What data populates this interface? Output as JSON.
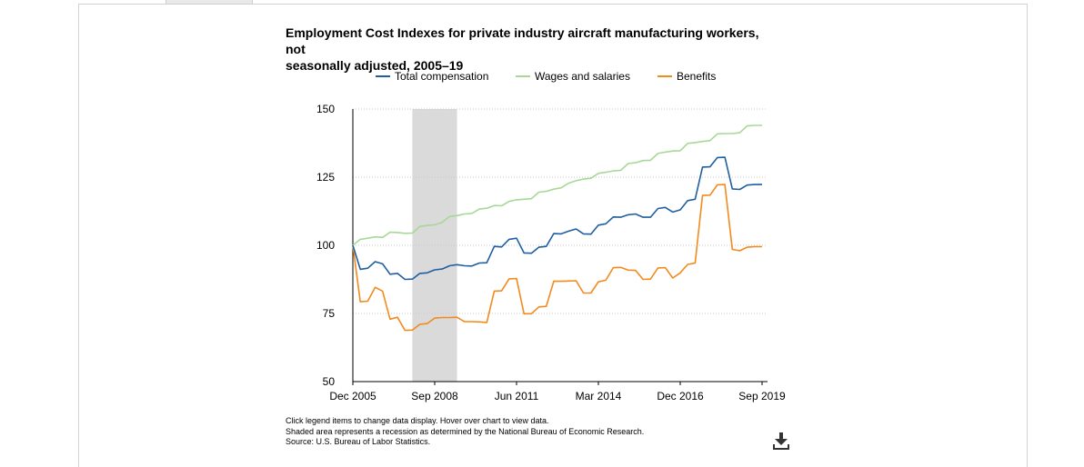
{
  "chart_data": {
    "type": "line",
    "title": "Employment Cost Indexes for private industry aircraft manufacturing workers, not\nseasonally adjusted, 2005–19",
    "xlabel": "",
    "ylabel": "",
    "ylim": [
      50,
      150
    ],
    "yticks": [
      50,
      75,
      100,
      125,
      150
    ],
    "xticks": [
      {
        "t": 0,
        "label": "Dec 2005"
      },
      {
        "t": 11,
        "label": "Sep 2008"
      },
      {
        "t": 22,
        "label": "Jun 2011"
      },
      {
        "t": 33,
        "label": "Mar 2014"
      },
      {
        "t": 44,
        "label": "Dec 2016"
      },
      {
        "t": 55,
        "label": "Sep 2019"
      }
    ],
    "x_unit": "quarters since Dec 2005",
    "recession": {
      "start": 8,
      "end": 14
    },
    "grid": "dotted horizontal",
    "legend_position": "top",
    "series": [
      {
        "name": "Total compensation",
        "color": "#1f5fa0",
        "values": [
          100,
          91.2,
          91.6,
          94,
          93.2,
          89.4,
          89.7,
          87.5,
          87.6,
          89.7,
          89.9,
          91,
          91.3,
          92.5,
          92.9,
          92.5,
          92.4,
          93.5,
          93.6,
          99.6,
          99.4,
          102.2,
          102.6,
          97.2,
          97.1,
          99.3,
          99.6,
          104.3,
          104.2,
          105.2,
          106,
          104.2,
          104.1,
          107.4,
          107.9,
          110.4,
          110.3,
          111.2,
          111.5,
          110.3,
          110.3,
          113.5,
          113.9,
          112.2,
          113,
          116.4,
          116.9,
          128.7,
          128.8,
          132.2,
          132.3,
          120.7,
          120.5,
          122.1,
          122.3,
          122.3
        ]
      },
      {
        "name": "Wages and salaries",
        "color": "#a8d896",
        "values": [
          100,
          102.2,
          102.6,
          103.1,
          102.9,
          104.8,
          104.7,
          104.4,
          104.5,
          106.9,
          107.3,
          107.5,
          108.4,
          110.6,
          110.9,
          111.5,
          111.7,
          113.3,
          113.6,
          114.6,
          114.5,
          116.1,
          116.7,
          116.9,
          117.1,
          119.5,
          119.8,
          120.6,
          121.1,
          122.8,
          123.7,
          124.3,
          124.6,
          126.4,
          126.8,
          127.3,
          127.5,
          130,
          130.3,
          131.1,
          131.2,
          133.7,
          134.2,
          134.6,
          134.7,
          137.4,
          137.7,
          138.1,
          138.4,
          140.9,
          141,
          141,
          141.3,
          143.8,
          144,
          144
        ]
      },
      {
        "name": "Benefits",
        "color": "#f28a1e",
        "values": [
          100,
          79.3,
          79.5,
          84.6,
          83.2,
          72.9,
          73.6,
          68.8,
          68.9,
          71,
          71.3,
          73.3,
          73.5,
          73.5,
          73.6,
          72,
          72,
          71.9,
          71.7,
          83.2,
          83.3,
          87.7,
          87.8,
          74.9,
          74.9,
          77.4,
          77.6,
          86.8,
          86.8,
          86.9,
          87,
          82.5,
          82.5,
          86.6,
          87.2,
          91.8,
          91.9,
          90.9,
          90.8,
          87.5,
          87.6,
          91.7,
          91.8,
          88,
          89.9,
          93,
          93.5,
          118.3,
          118.4,
          122.2,
          122.3,
          98.5,
          98,
          99.3,
          99.5,
          99.5
        ]
      }
    ]
  },
  "notes": [
    "Click legend items to change data display. Hover over chart to view data.",
    "Shaded area represents a recession as determined by the National Bureau of Economic Research.",
    "Source: U.S. Bureau of Labor Statistics."
  ],
  "download_icon": "download-icon"
}
